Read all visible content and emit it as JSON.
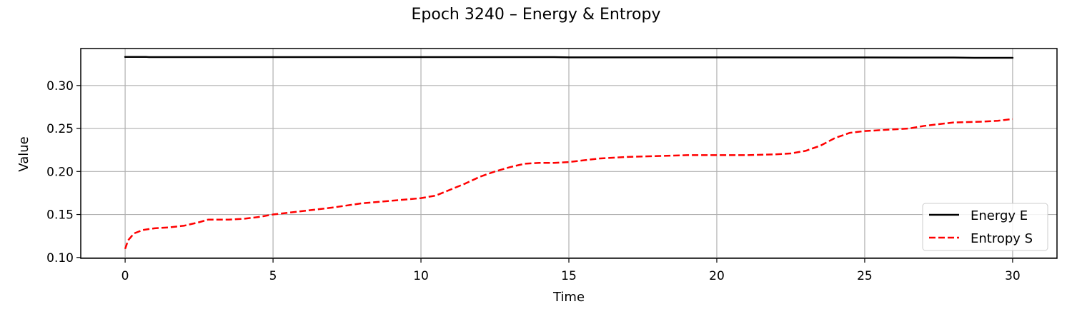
{
  "chart_data": {
    "type": "line",
    "title": "Epoch 3240 – Energy & Entropy",
    "xlabel": "Time",
    "ylabel": "Value",
    "xlim": [
      -1.5,
      31.5
    ],
    "ylim": [
      0.099,
      0.343
    ],
    "xticks": [
      0,
      5,
      10,
      15,
      20,
      25,
      30
    ],
    "yticks": [
      0.1,
      0.15,
      0.2,
      0.25,
      0.3
    ],
    "xtick_labels": [
      "0",
      "5",
      "10",
      "15",
      "20",
      "25",
      "30"
    ],
    "ytick_labels": [
      "0.10",
      "0.15",
      "0.20",
      "0.25",
      "0.30"
    ],
    "grid": true,
    "legend_position": "lower-right",
    "series": [
      {
        "name": "Energy E",
        "color": "#000000",
        "style": "solid",
        "x": [
          0,
          0.7,
          0.8,
          5,
          10,
          14.5,
          15,
          20,
          25,
          28,
          28.7,
          30
        ],
        "y": [
          0.3333,
          0.3333,
          0.333,
          0.333,
          0.333,
          0.333,
          0.3327,
          0.3327,
          0.3326,
          0.3325,
          0.3322,
          0.3322
        ]
      },
      {
        "name": "Entropy S",
        "color": "#ff0000",
        "style": "dashed",
        "x": [
          0,
          0.1,
          0.3,
          0.6,
          1,
          1.5,
          2,
          2.5,
          2.8,
          3.5,
          4,
          4.5,
          5,
          6,
          7,
          8,
          9,
          10,
          10.5,
          11,
          11.5,
          12,
          12.5,
          13,
          13.5,
          14,
          14.5,
          15,
          15.5,
          16,
          17,
          18,
          19,
          20,
          21,
          22,
          22.5,
          23,
          23.5,
          24,
          24.5,
          25,
          26,
          26.5,
          27,
          27.5,
          28,
          29,
          29.5,
          30
        ],
        "y": [
          0.11,
          0.12,
          0.128,
          0.132,
          0.134,
          0.135,
          0.137,
          0.141,
          0.144,
          0.144,
          0.145,
          0.147,
          0.15,
          0.154,
          0.158,
          0.163,
          0.166,
          0.169,
          0.172,
          0.179,
          0.186,
          0.194,
          0.2,
          0.205,
          0.209,
          0.21,
          0.21,
          0.211,
          0.213,
          0.215,
          0.217,
          0.218,
          0.219,
          0.219,
          0.219,
          0.22,
          0.221,
          0.224,
          0.23,
          0.239,
          0.245,
          0.247,
          0.249,
          0.25,
          0.253,
          0.255,
          0.257,
          0.258,
          0.259,
          0.261
        ]
      }
    ]
  }
}
